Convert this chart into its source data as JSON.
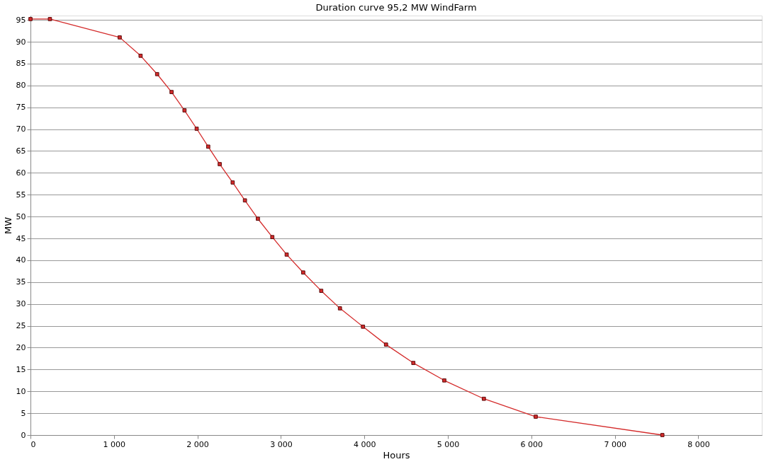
{
  "chart_data": {
    "type": "line",
    "title": "Duration curve 95,2 MW WindFarm",
    "xlabel": "Hours",
    "ylabel": "MW",
    "x": [
      0,
      233,
      1069,
      1319,
      1517,
      1690,
      1845,
      1991,
      2129,
      2267,
      2422,
      2569,
      2724,
      2897,
      3069,
      3267,
      3483,
      3707,
      3983,
      4259,
      4586,
      4957,
      5431,
      6052,
      7569
    ],
    "series": [
      {
        "color": "#d42b2b",
        "values": [
          95.2,
          95.2,
          91.0,
          86.8,
          82.6,
          78.5,
          74.3,
          70.1,
          66.0,
          62.0,
          57.8,
          53.7,
          49.5,
          45.3,
          41.3,
          37.2,
          33.0,
          29.0,
          24.8,
          20.7,
          16.5,
          12.5,
          8.3,
          4.2,
          0
        ]
      }
    ],
    "xlim": [
      0,
      8760
    ],
    "ylim": [
      0,
      96
    ],
    "xticks": [
      0,
      {
        "value": 1000,
        "label": "1 000"
      },
      {
        "value": 2000,
        "label": "2 000"
      },
      {
        "value": 3000,
        "label": "3 000"
      },
      {
        "value": 4000,
        "label": "4 000"
      },
      {
        "value": 5000,
        "label": "5 000"
      },
      {
        "value": 6000,
        "label": "6 000"
      },
      {
        "value": 7000,
        "label": "7 000"
      },
      {
        "value": 8000,
        "label": "8 000"
      }
    ],
    "yticks": [
      0,
      5,
      10,
      15,
      20,
      25,
      30,
      35,
      40,
      45,
      50,
      55,
      60,
      65,
      70,
      75,
      80,
      85,
      90,
      95
    ],
    "grid": "y",
    "marker": "square",
    "line_style": "solid"
  }
}
